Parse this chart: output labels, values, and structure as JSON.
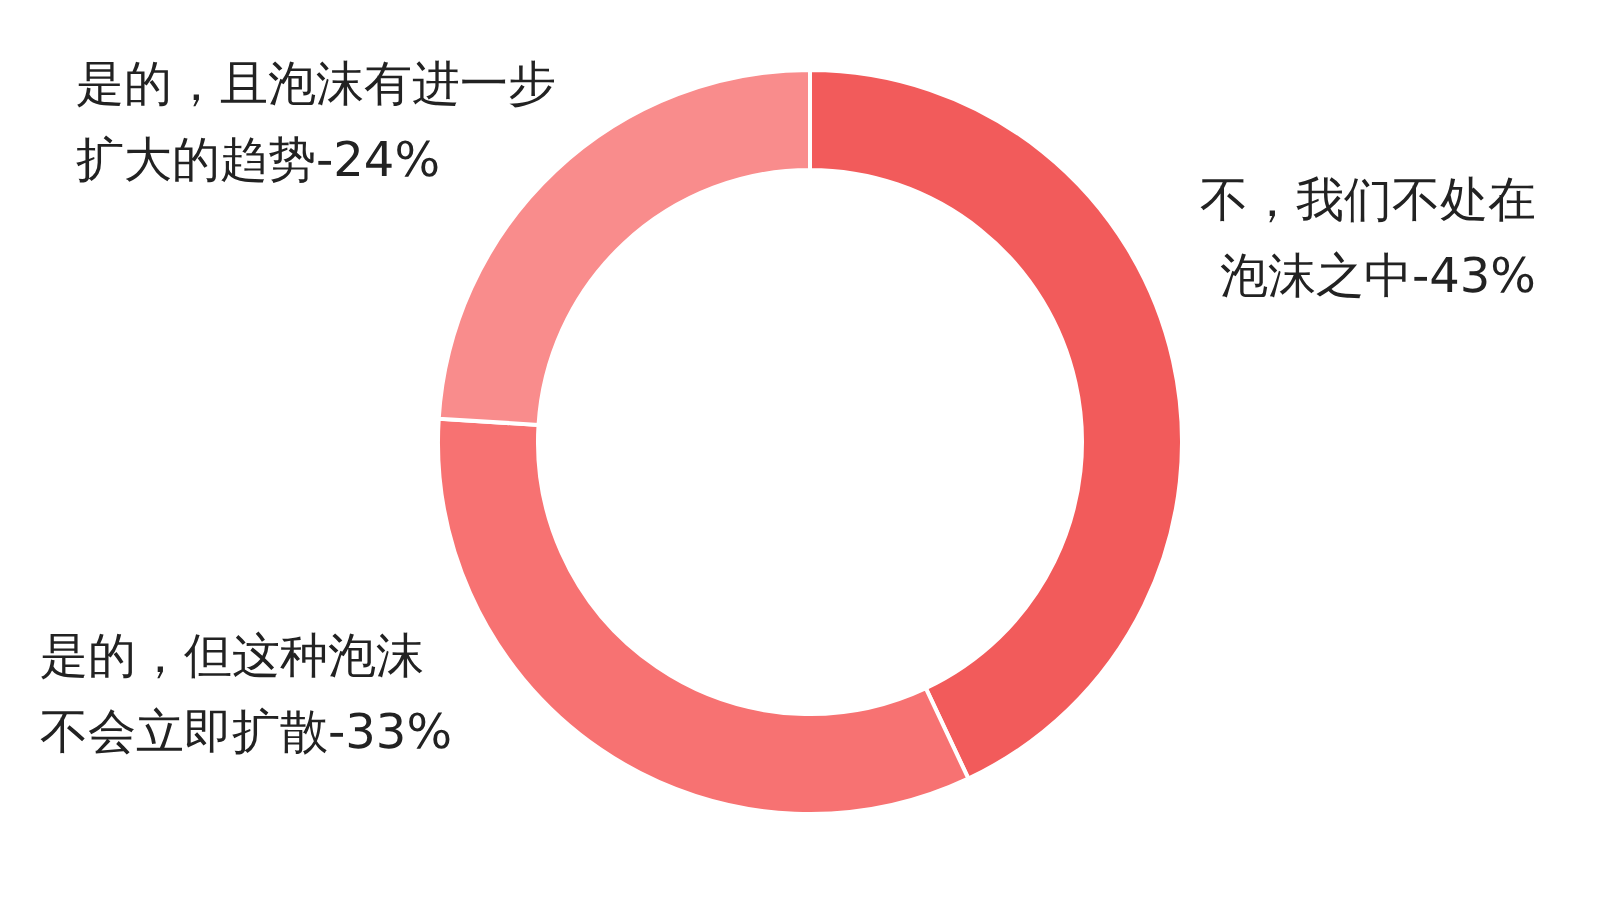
{
  "chart_data": {
    "type": "donut",
    "categories": [
      "不，我们不处在泡沫之中-43%",
      "是的，但这种泡沫不会立即扩散-33%",
      "是的，且泡沫有进一步扩大的趋势-24%"
    ],
    "values": [
      43,
      33,
      24
    ],
    "colors": [
      "#f25b5b",
      "#f77272",
      "#f98c8c"
    ],
    "legend": false
  }
}
